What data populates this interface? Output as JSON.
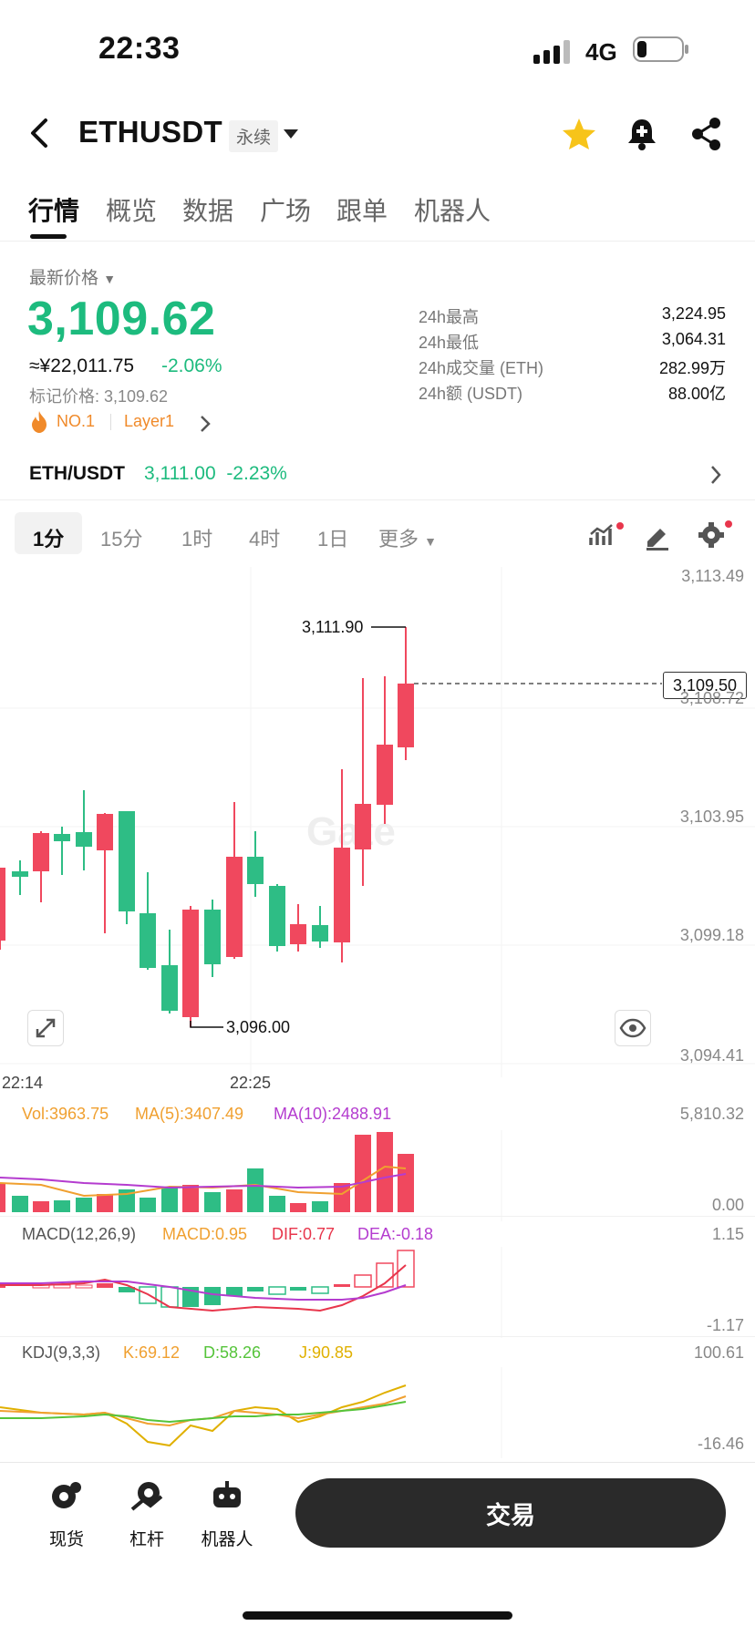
{
  "status_bar": {
    "time": "22:33",
    "network": "4G"
  },
  "header": {
    "symbol": "ETHUSDT",
    "contract_type": "永续"
  },
  "tabs": [
    "行情",
    "概览",
    "数据",
    "广场",
    "跟单",
    "机器人"
  ],
  "summary": {
    "latest_price_label": "最新价格",
    "last_price": "3,109.62",
    "cny_price": "≈¥22,011.75",
    "change_pct": "-2.06%",
    "mark_price": "标记价格: 3,109.62",
    "rank": "NO.1",
    "sector": "Layer1"
  },
  "stats": [
    {
      "label": "24h最高",
      "value": "3,224.95"
    },
    {
      "label": "24h最低",
      "value": "3,064.31"
    },
    {
      "label": "24h成交量 (ETH)",
      "value": "282.99万"
    },
    {
      "label": "24h额 (USDT)",
      "value": "88.00亿"
    }
  ],
  "spot_pair": {
    "pair": "ETH/USDT",
    "price": "3,111.00",
    "change": "-2.23%"
  },
  "timeframes": {
    "items": [
      "1分",
      "15分",
      "1时",
      "4时",
      "1日"
    ],
    "more": "更多",
    "selected": "1分"
  },
  "chart": {
    "price_axis": [
      "3,113.49",
      "3,108.72",
      "3,103.95",
      "3,099.18",
      "3,094.41"
    ],
    "current_price_tag": "3,109.50",
    "high_annotation": "3,111.90",
    "low_annotation": "3,096.00",
    "time_labels": [
      "22:14",
      "22:25"
    ],
    "watermark": "Gate",
    "colors": {
      "up": "#2ebd85",
      "down": "#f0485e"
    }
  },
  "volume": {
    "vol": "Vol:3963.75",
    "ma5": "MA(5):3407.49",
    "ma10": "MA(10):2488.91",
    "axis": [
      "5,810.32",
      "0.00"
    ]
  },
  "macd": {
    "title": "MACD(12,26,9)",
    "macd": "MACD:0.95",
    "dif": "DIF:0.77",
    "dea": "DEA:-0.18",
    "axis": [
      "1.15",
      "-1.17"
    ]
  },
  "kdj": {
    "title": "KDJ(9,3,3)",
    "k": "K:69.12",
    "d": "D:58.26",
    "j": "J:90.85",
    "axis": [
      "100.61",
      "-16.46"
    ]
  },
  "bottom_nav": [
    {
      "label": "现货",
      "icon": "spot-icon"
    },
    {
      "label": "杠杆",
      "icon": "margin-icon"
    },
    {
      "label": "机器人",
      "icon": "robot-icon"
    }
  ],
  "trade_button": "交易"
}
